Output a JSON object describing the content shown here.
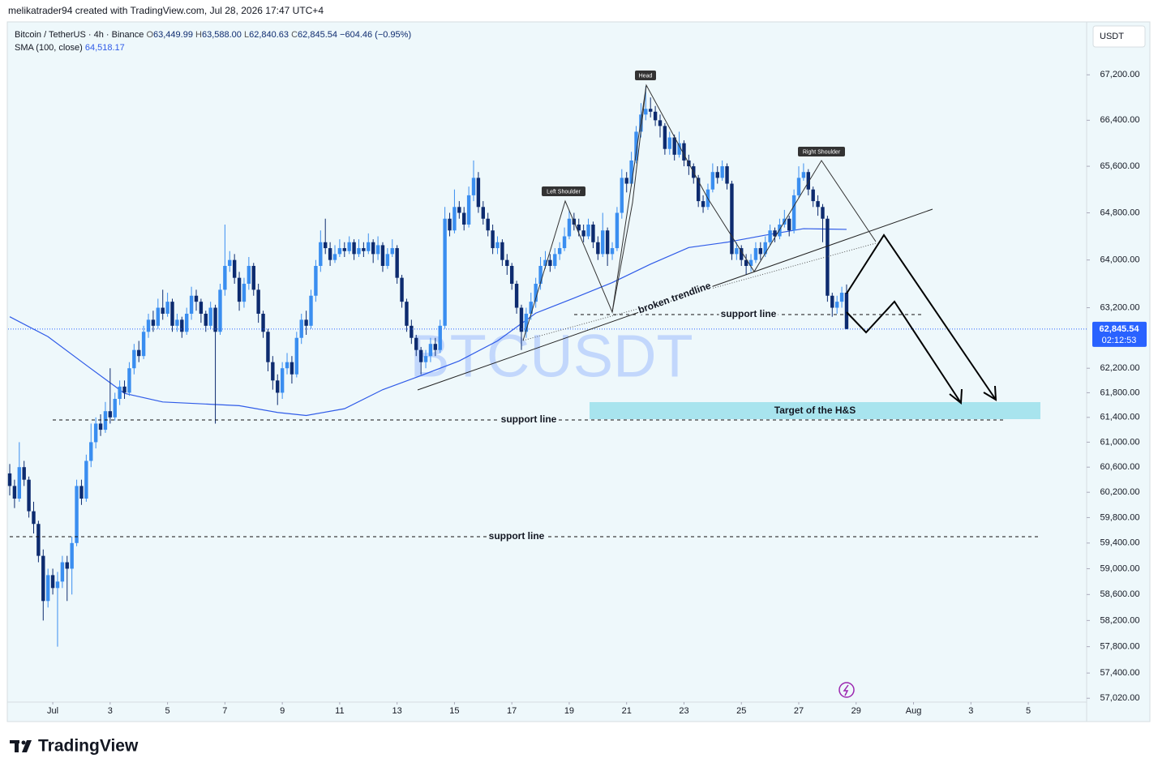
{
  "header": "melikatrader94 created with TradingView.com, Jul 28, 2026 17:47 UTC+4",
  "chart_data": {
    "type": "candlestick",
    "symbol": "Bitcoin / TetherUS · 4h · Binance",
    "ohlc_labels": [
      {
        "prefix": "O",
        "value": "63,449.99"
      },
      {
        "prefix": "H",
        "value": "63,588.00"
      },
      {
        "prefix": "L",
        "value": "62,840.63"
      },
      {
        "prefix": "C",
        "value": "62,845.54"
      }
    ],
    "change_label": "−604.46 (−0.95%)",
    "watermark": "BTCUSDT",
    "currency": "USDT",
    "up_color": "#3a8ef0",
    "down_color": "#0d2b6f",
    "open": [
      60500,
      60300,
      60100,
      60600,
      60400,
      59900,
      59700,
      59200,
      58500,
      58900,
      58700,
      58800,
      59100,
      59000,
      59400,
      60300,
      60100,
      60700,
      61000,
      61300,
      61200,
      61500,
      61400,
      61700,
      61900,
      61800,
      62200,
      62500,
      62400,
      62800,
      63000,
      62900,
      63200,
      63100,
      63300,
      62900,
      63000,
      62800,
      63100,
      63400,
      63300,
      63100,
      62900,
      63200,
      62800,
      63500,
      63900,
      64000,
      63700,
      63300,
      63600,
      63900,
      63500,
      63100,
      62800,
      62300,
      62000,
      61800,
      62200,
      62300,
      62100,
      62700,
      63000,
      62900,
      63400,
      63900,
      64300,
      64200,
      64000,
      64100,
      64200,
      64150,
      64300,
      64100,
      64200,
      64150,
      64300,
      64100,
      64250,
      63900,
      64100,
      64200,
      63700,
      63300,
      62900,
      62700,
      62500,
      62300,
      62400,
      62600,
      62500,
      62900,
      64700,
      64500,
      64900,
      64800,
      64600,
      65100,
      65400,
      64900,
      64700,
      64500,
      64200,
      64300,
      64000,
      63900,
      63600,
      63200,
      62800,
      63100,
      63300,
      63600,
      63900,
      64000,
      63900,
      64100,
      64200,
      64400,
      64700,
      64600,
      64500,
      64400,
      64600,
      64300,
      64100,
      64500,
      64100,
      64200,
      64800,
      65400,
      65300,
      65700,
      66200,
      66500,
      66600,
      66550,
      66400,
      66300,
      65900,
      66100,
      65800,
      66000,
      65700,
      65600,
      65400,
      65000,
      64900,
      65200,
      65500,
      65400,
      65600,
      65300,
      64100,
      64200,
      64000,
      63900,
      64000,
      64200,
      64100,
      64300,
      64500,
      64400,
      64600,
      64700,
      64500,
      65100,
      65400,
      65500,
      65200,
      65000,
      64900,
      64700,
      63400,
      63200,
      63300,
      63449.99
    ],
    "high": [
      60650,
      60400,
      61000,
      60700,
      60450,
      60050,
      59750,
      59300,
      59000,
      59000,
      58950,
      59200,
      59200,
      59500,
      60400,
      60400,
      60800,
      61300,
      61400,
      61450,
      61650,
      62200,
      61800,
      62000,
      62000,
      62300,
      62600,
      62650,
      62900,
      63100,
      63150,
      63350,
      63500,
      63450,
      63350,
      63100,
      63050,
      63200,
      63550,
      63500,
      63350,
      63150,
      63300,
      63250,
      63600,
      64600,
      64150,
      64100,
      63800,
      63700,
      64050,
      63950,
      63600,
      63150,
      62850,
      62400,
      62100,
      62300,
      62450,
      62400,
      62800,
      63100,
      63150,
      63500,
      64000,
      64500,
      64700,
      64300,
      64250,
      64350,
      64300,
      64400,
      64350,
      64350,
      64300,
      64450,
      64350,
      64400,
      64300,
      64200,
      64350,
      64250,
      63750,
      63350,
      63000,
      62750,
      62550,
      62500,
      62700,
      62700,
      63000,
      64900,
      64800,
      65200,
      65000,
      64900,
      65250,
      65700,
      65500,
      65000,
      64800,
      64600,
      64400,
      64350,
      64100,
      63950,
      63650,
      63250,
      63200,
      63450,
      63700,
      64050,
      64150,
      64100,
      64200,
      64300,
      64550,
      64850,
      64800,
      64700,
      64600,
      64700,
      64650,
      64400,
      64800,
      64550,
      64300,
      64900,
      65550,
      65500,
      65850,
      66300,
      66700,
      67000,
      66800,
      66650,
      66500,
      66350,
      66200,
      66150,
      66200,
      66050,
      65800,
      65650,
      65450,
      65100,
      65300,
      65650,
      65600,
      65700,
      65650,
      65350,
      64300,
      64250,
      64100,
      64100,
      64300,
      64300,
      64400,
      64600,
      64550,
      64700,
      64850,
      64750,
      65200,
      65600,
      65650,
      65550,
      65250,
      65100,
      64950,
      64750,
      63450,
      63400,
      63550,
      63588
    ],
    "low": [
      60150,
      59950,
      60050,
      60300,
      59800,
      59550,
      59100,
      58200,
      58400,
      58600,
      57800,
      58700,
      58500,
      58600,
      59350,
      60000,
      60050,
      60600,
      60900,
      61100,
      61150,
      61300,
      61350,
      61600,
      61700,
      61750,
      62100,
      62300,
      62350,
      62700,
      62800,
      62850,
      63000,
      63050,
      62800,
      62800,
      62700,
      62750,
      63000,
      63150,
      62950,
      62800,
      62850,
      61300,
      62750,
      63400,
      63800,
      63600,
      63150,
      63200,
      63500,
      63400,
      62950,
      62700,
      62150,
      61850,
      61600,
      61700,
      62100,
      61950,
      62050,
      62600,
      62750,
      62850,
      63300,
      63800,
      64100,
      63900,
      63950,
      64050,
      64050,
      64100,
      64000,
      64050,
      64050,
      64100,
      63950,
      64000,
      63800,
      63850,
      64050,
      63600,
      63200,
      62800,
      62600,
      62400,
      62100,
      62200,
      62300,
      62400,
      62450,
      62850,
      64400,
      64450,
      64700,
      64500,
      64550,
      65000,
      64800,
      64600,
      64400,
      64100,
      64100,
      63900,
      63750,
      63500,
      63100,
      62500,
      62700,
      63000,
      63200,
      63500,
      63850,
      63800,
      63850,
      64000,
      64150,
      64350,
      64500,
      64400,
      64300,
      64350,
      64200,
      64000,
      64050,
      63900,
      64000,
      64150,
      64700,
      65150,
      65250,
      65650,
      66100,
      66400,
      66450,
      66300,
      66100,
      65800,
      65800,
      65700,
      65750,
      65600,
      65450,
      65300,
      64900,
      64800,
      64850,
      65150,
      65300,
      65350,
      65200,
      64000,
      64000,
      63900,
      63750,
      63800,
      63950,
      64000,
      64050,
      64250,
      64300,
      64350,
      64550,
      64400,
      64450,
      65050,
      65350,
      65100,
      64900,
      64750,
      64300,
      63300,
      63050,
      63100,
      63200,
      62840.63
    ],
    "close": [
      60300,
      60100,
      60600,
      60400,
      59900,
      59700,
      59200,
      58500,
      58900,
      58700,
      58800,
      59100,
      59000,
      59400,
      60300,
      60100,
      60700,
      61000,
      61300,
      61200,
      61500,
      61400,
      61700,
      61900,
      61800,
      62200,
      62500,
      62400,
      62800,
      63000,
      62900,
      63200,
      63100,
      63300,
      62900,
      63000,
      62800,
      63100,
      63400,
      63300,
      63100,
      62900,
      63200,
      62800,
      63500,
      63900,
      64000,
      63700,
      63300,
      63600,
      63900,
      63500,
      63100,
      62800,
      62300,
      62000,
      61800,
      62200,
      62300,
      62100,
      62700,
      63000,
      62900,
      63400,
      63900,
      64300,
      64200,
      64000,
      64100,
      64200,
      64150,
      64300,
      64100,
      64200,
      64150,
      64300,
      64100,
      64250,
      63900,
      64100,
      64200,
      63700,
      63300,
      62900,
      62700,
      62500,
      62300,
      62400,
      62600,
      62500,
      62900,
      64700,
      64500,
      64900,
      64800,
      64600,
      65100,
      65400,
      64900,
      64700,
      64500,
      64200,
      64300,
      64000,
      63900,
      63600,
      63200,
      62800,
      63100,
      63300,
      63600,
      63900,
      64000,
      63900,
      64100,
      64200,
      64400,
      64700,
      64600,
      64500,
      64400,
      64600,
      64300,
      64100,
      64500,
      64100,
      64200,
      64800,
      65400,
      65300,
      65700,
      66200,
      66500,
      66600,
      66550,
      66400,
      66300,
      65900,
      66100,
      65800,
      66000,
      65700,
      65600,
      65400,
      65000,
      64900,
      65200,
      65500,
      65400,
      65600,
      65300,
      64100,
      64200,
      64000,
      63900,
      64000,
      64200,
      64100,
      64300,
      64500,
      64400,
      64600,
      64700,
      64500,
      65100,
      65400,
      65500,
      65200,
      65000,
      64900,
      64700,
      63400,
      63200,
      63300,
      63450,
      62845.54
    ],
    "last_price_label": "62,845.54",
    "countdown": "02:12:53",
    "sma": {
      "name": "SMA (100, close)",
      "color": "#2f5be8",
      "value_label": "64,518.17",
      "x": [
        0,
        8,
        16,
        24,
        32,
        40,
        48,
        56,
        62,
        70,
        78,
        86,
        94,
        102,
        110,
        118,
        126,
        134,
        142,
        150,
        158,
        166,
        175
      ],
      "values": [
        63050,
        62720,
        62250,
        61790,
        61650,
        61620,
        61590,
        61480,
        61430,
        61540,
        61850,
        62080,
        62320,
        62650,
        63110,
        63360,
        63620,
        63930,
        64210,
        64300,
        64420,
        64530,
        64518.17
      ]
    },
    "xlim": [
      -0.34,
      225.2
    ],
    "xticks": [
      {
        "value": 9,
        "label": "Jul"
      },
      {
        "value": 21,
        "label": "3"
      },
      {
        "value": 33,
        "label": "5"
      },
      {
        "value": 45,
        "label": "7"
      },
      {
        "value": 57,
        "label": "9"
      },
      {
        "value": 69,
        "label": "11"
      },
      {
        "value": 81,
        "label": "13"
      },
      {
        "value": 93,
        "label": "15"
      },
      {
        "value": 105,
        "label": "17"
      },
      {
        "value": 117,
        "label": "19"
      },
      {
        "value": 129,
        "label": "21"
      },
      {
        "value": 141,
        "label": "23"
      },
      {
        "value": 153,
        "label": "25"
      },
      {
        "value": 165,
        "label": "27"
      },
      {
        "value": 177,
        "label": "29"
      },
      {
        "value": 189,
        "label": "Aug"
      },
      {
        "value": 201,
        "label": "3"
      },
      {
        "value": 213,
        "label": "5"
      }
    ],
    "ylim": [
      56950,
      68100
    ],
    "log_scale": true,
    "grid": false,
    "yticks": [
      {
        "value": 67200,
        "label": "67,200.00"
      },
      {
        "value": 66400,
        "label": "66,400.00"
      },
      {
        "value": 65600,
        "label": "65,600.00"
      },
      {
        "value": 64800,
        "label": "64,800.00"
      },
      {
        "value": 64000,
        "label": "64,000.00"
      },
      {
        "value": 63200,
        "label": "63,200.00"
      },
      {
        "value": 62200,
        "label": "62,200.00"
      },
      {
        "value": 61800,
        "label": "61,800.00"
      },
      {
        "value": 61400,
        "label": "61,400.00"
      },
      {
        "value": 61000,
        "label": "61,000.00"
      },
      {
        "value": 60600,
        "label": "60,600.00"
      },
      {
        "value": 60200,
        "label": "60,200.00"
      },
      {
        "value": 59800,
        "label": "59,800.00"
      },
      {
        "value": 59400,
        "label": "59,400.00"
      },
      {
        "value": 59000,
        "label": "59,000.00"
      },
      {
        "value": 58600,
        "label": "58,600.00"
      },
      {
        "value": 58200,
        "label": "58,200.00"
      },
      {
        "value": 57800,
        "label": "57,800.00"
      },
      {
        "value": 57400,
        "label": "57,400.00"
      },
      {
        "value": 57020,
        "label": "57,020.00"
      }
    ],
    "annotations": {
      "head": "Head",
      "left_shoulder": "Left Shoulder",
      "right_shoulder": "Right Shoulder",
      "broken_trendline": "broken trendline",
      "support_lines": [
        "support line",
        "support line",
        "support line"
      ],
      "target": "Target of the H&S"
    }
  },
  "footer": "TradingView"
}
